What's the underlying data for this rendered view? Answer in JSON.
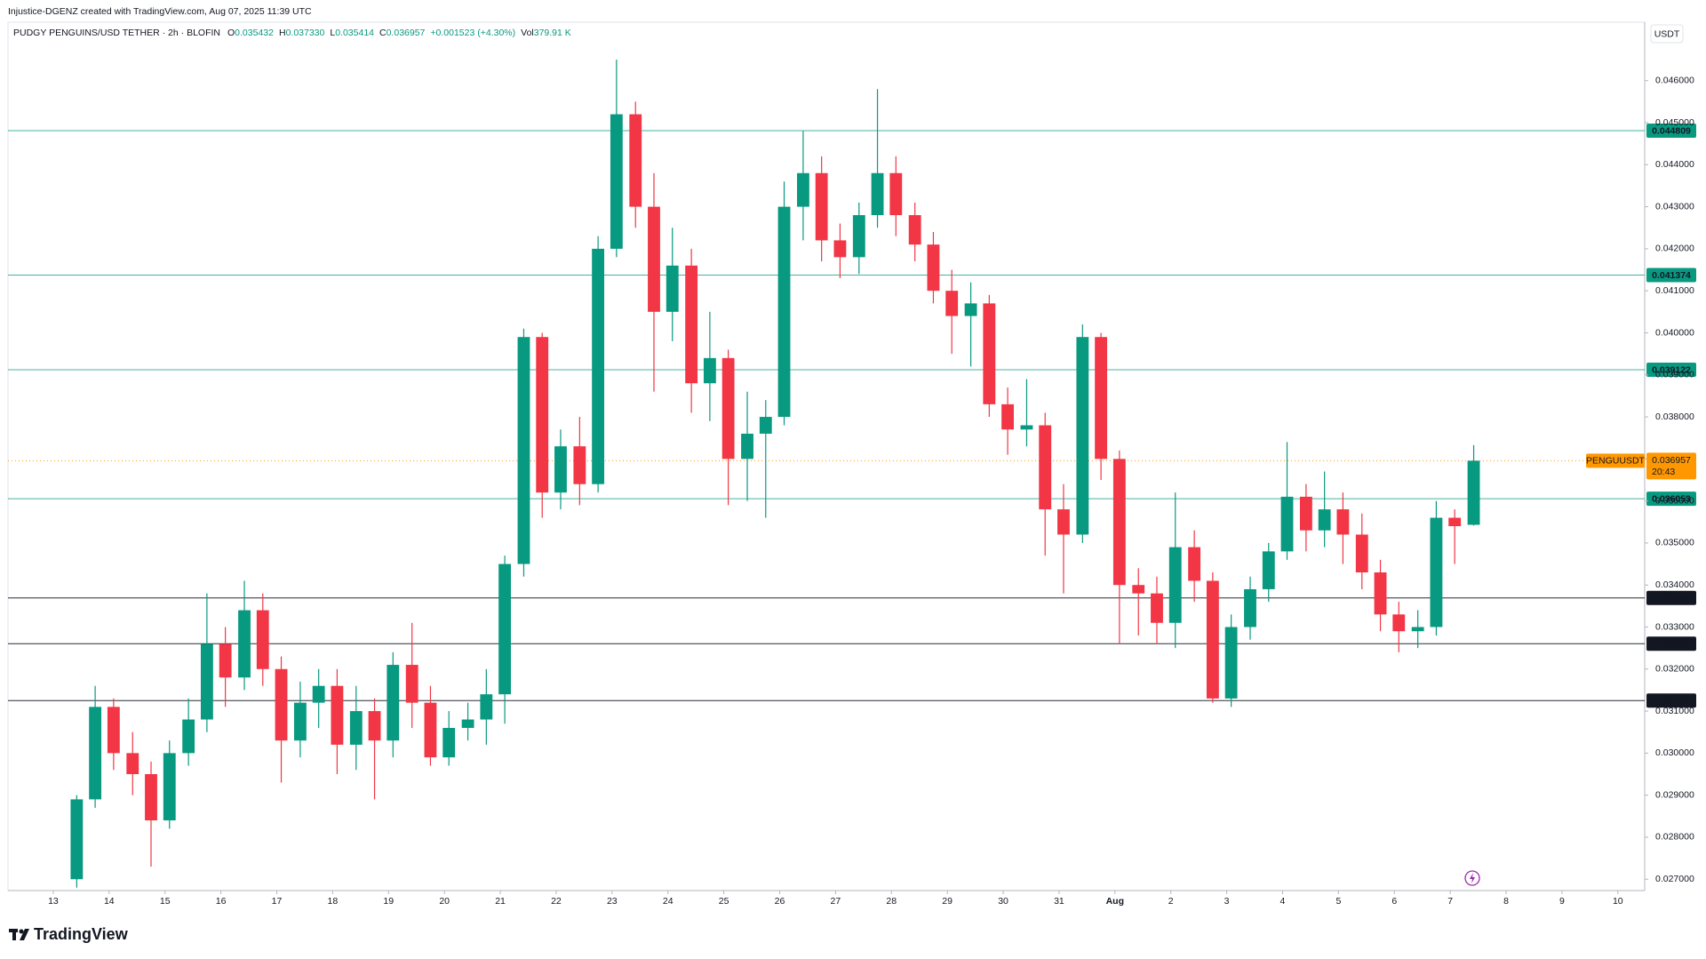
{
  "header": {
    "credit": "Injustice-DGENZ created with TradingView.com, Aug 07, 2025 11:39 UTC"
  },
  "footer": {
    "brand": "TradingView"
  },
  "chart_data": {
    "type": "candlestick",
    "symbol": "PUDGY PENGUINS/USD TETHER · 2h · BLOFIN",
    "legend": {
      "open_prefix": "O",
      "open": "0.035432",
      "high_prefix": "H",
      "high": "0.037330",
      "low_prefix": "L",
      "low": "0.035414",
      "close_prefix": "C",
      "close": "0.036957",
      "change": "+0.001523 (+4.30%)",
      "volume_prefix": "Vol",
      "volume": "379.91 K"
    },
    "currency": "USDT",
    "up_color": "#089981",
    "down_color": "#f23645",
    "xlim": [
      12.19,
      41.48
    ],
    "ylim": [
      0.02673,
      0.04739
    ],
    "xticks": [
      13,
      14,
      15,
      16,
      17,
      18,
      19,
      20,
      21,
      22,
      23,
      24,
      25,
      26,
      27,
      28,
      29,
      30,
      31,
      {
        "value": 32,
        "label": "Aug"
      },
      {
        "value": 33,
        "label": "2"
      },
      {
        "value": 34,
        "label": "3"
      },
      {
        "value": 35,
        "label": "4"
      },
      {
        "value": 36,
        "label": "5"
      },
      {
        "value": 37,
        "label": "6"
      },
      {
        "value": 38,
        "label": "7"
      },
      {
        "value": 39,
        "label": "8"
      },
      {
        "value": 40,
        "label": "9"
      },
      {
        "value": 41,
        "label": "10"
      }
    ],
    "yticks": [
      {
        "value": 0.027,
        "label": "0.027000"
      },
      {
        "value": 0.028,
        "label": "0.028000"
      },
      {
        "value": 0.029,
        "label": "0.029000"
      },
      {
        "value": 0.03,
        "label": "0.030000"
      },
      {
        "value": 0.031,
        "label": "0.031000"
      },
      {
        "value": 0.032,
        "label": "0.032000"
      },
      {
        "value": 0.033,
        "label": "0.033000"
      },
      {
        "value": 0.034,
        "label": "0.034000"
      },
      {
        "value": 0.035,
        "label": "0.035000"
      },
      {
        "value": 0.036,
        "label": "0.036000"
      },
      {
        "value": 0.037,
        "label": "0.037000"
      },
      {
        "value": 0.038,
        "label": "0.038000"
      },
      {
        "value": 0.039,
        "label": "0.039000"
      },
      {
        "value": 0.04,
        "label": "0.040000"
      },
      {
        "value": 0.041,
        "label": "0.041000"
      },
      {
        "value": 0.042,
        "label": "0.042000"
      },
      {
        "value": 0.043,
        "label": "0.043000"
      },
      {
        "value": 0.044,
        "label": "0.044000"
      },
      {
        "value": 0.045,
        "label": "0.045000"
      },
      {
        "value": 0.046,
        "label": "0.046000"
      }
    ],
    "levels": [
      0.044809,
      0.041374,
      0.039122,
      0.036053,
      0.033692,
      0.032604,
      0.031249
    ],
    "level_colors": [
      "#089981",
      "#089981",
      "#089981",
      "#089981",
      "#131722",
      "#131722",
      "#131722"
    ],
    "last_price": {
      "name": "PENGUUSDT",
      "value": 0.036957,
      "countdown": "20:43",
      "color": "#ff9800"
    },
    "x": [
      13.42,
      13.75,
      14.08,
      14.42,
      14.75,
      15.08,
      15.42,
      15.75,
      16.08,
      16.42,
      16.75,
      17.08,
      17.42,
      17.75,
      18.08,
      18.42,
      18.75,
      19.08,
      19.42,
      19.75,
      20.08,
      20.42,
      20.75,
      21.08,
      21.42,
      21.75,
      22.08,
      22.42,
      22.75,
      23.08,
      23.42,
      23.75,
      24.08,
      24.42,
      24.75,
      25.08,
      25.42,
      25.75,
      26.08,
      26.42,
      26.75,
      27.08,
      27.42,
      27.75,
      28.08,
      28.42,
      28.75,
      29.08,
      29.42,
      29.75,
      30.08,
      30.42,
      30.75,
      31.08,
      31.42,
      31.75,
      32.08,
      32.42,
      32.75,
      33.08,
      33.42,
      33.75,
      34.08,
      34.42,
      34.75,
      35.08,
      35.42,
      35.75,
      36.08,
      36.42,
      36.75,
      37.08,
      37.42,
      37.75,
      38.08,
      38.42
    ],
    "open": [
      0.027,
      0.0289,
      0.0311,
      0.03,
      0.0295,
      0.0284,
      0.03,
      0.0308,
      0.0326,
      0.0318,
      0.0334,
      0.032,
      0.0303,
      0.0312,
      0.0316,
      0.0302,
      0.031,
      0.0303,
      0.0321,
      0.0312,
      0.0299,
      0.0306,
      0.0308,
      0.0314,
      0.0345,
      0.0399,
      0.0362,
      0.0373,
      0.0364,
      0.042,
      0.0452,
      0.043,
      0.0405,
      0.0416,
      0.0388,
      0.0394,
      0.037,
      0.0376,
      0.038,
      0.043,
      0.0438,
      0.0422,
      0.0418,
      0.0428,
      0.0438,
      0.0428,
      0.0421,
      0.041,
      0.0404,
      0.0407,
      0.0383,
      0.0377,
      0.0378,
      0.0358,
      0.0352,
      0.0399,
      0.037,
      0.034,
      0.0338,
      0.0331,
      0.0349,
      0.0341,
      0.0313,
      0.033,
      0.0339,
      0.0348,
      0.0361,
      0.0353,
      0.0358,
      0.0352,
      0.0343,
      0.0333,
      0.0329,
      0.033,
      0.0356,
      0.035432
    ],
    "high": [
      0.029,
      0.0316,
      0.0313,
      0.0305,
      0.0298,
      0.0303,
      0.0313,
      0.0338,
      0.033,
      0.0341,
      0.0338,
      0.0323,
      0.0317,
      0.032,
      0.032,
      0.0316,
      0.0313,
      0.0324,
      0.0331,
      0.0316,
      0.031,
      0.0312,
      0.032,
      0.0347,
      0.0401,
      0.04,
      0.0377,
      0.038,
      0.0423,
      0.0465,
      0.0455,
      0.0438,
      0.0425,
      0.042,
      0.0405,
      0.0396,
      0.0386,
      0.0384,
      0.0436,
      0.0448,
      0.0442,
      0.0426,
      0.0431,
      0.0458,
      0.0442,
      0.0431,
      0.0424,
      0.0415,
      0.0412,
      0.0409,
      0.0387,
      0.0389,
      0.0381,
      0.0364,
      0.0402,
      0.04,
      0.0372,
      0.0344,
      0.0342,
      0.0362,
      0.0353,
      0.0343,
      0.0333,
      0.0342,
      0.035,
      0.0374,
      0.0364,
      0.0367,
      0.0362,
      0.0357,
      0.0346,
      0.0336,
      0.0334,
      0.036,
      0.0358,
      0.03733
    ],
    "low": [
      0.0268,
      0.0287,
      0.0296,
      0.029,
      0.0273,
      0.0282,
      0.0297,
      0.0305,
      0.0311,
      0.0315,
      0.0316,
      0.0293,
      0.0299,
      0.0306,
      0.0295,
      0.0296,
      0.0289,
      0.0299,
      0.0306,
      0.0297,
      0.0297,
      0.0303,
      0.0302,
      0.0307,
      0.0342,
      0.0356,
      0.0358,
      0.0359,
      0.0362,
      0.0418,
      0.0425,
      0.0386,
      0.0398,
      0.0381,
      0.0379,
      0.0359,
      0.036,
      0.0356,
      0.0378,
      0.0422,
      0.0417,
      0.0413,
      0.0414,
      0.0425,
      0.0423,
      0.0417,
      0.0407,
      0.0395,
      0.0392,
      0.038,
      0.0371,
      0.0373,
      0.0347,
      0.0338,
      0.035,
      0.0365,
      0.0326,
      0.0328,
      0.0326,
      0.0325,
      0.0336,
      0.0312,
      0.0311,
      0.0327,
      0.0336,
      0.0346,
      0.0348,
      0.0349,
      0.0345,
      0.0339,
      0.0329,
      0.0324,
      0.0325,
      0.0328,
      0.0345,
      0.035414
    ],
    "close": [
      0.0289,
      0.0311,
      0.03,
      0.0295,
      0.0284,
      0.03,
      0.0308,
      0.0326,
      0.0318,
      0.0334,
      0.032,
      0.0303,
      0.0312,
      0.0316,
      0.0302,
      0.031,
      0.0303,
      0.0321,
      0.0312,
      0.0299,
      0.0306,
      0.0308,
      0.0314,
      0.0345,
      0.0399,
      0.0362,
      0.0373,
      0.0364,
      0.042,
      0.0452,
      0.043,
      0.0405,
      0.0416,
      0.0388,
      0.0394,
      0.037,
      0.0376,
      0.038,
      0.043,
      0.0438,
      0.0422,
      0.0418,
      0.0428,
      0.0438,
      0.0428,
      0.0421,
      0.041,
      0.0404,
      0.0407,
      0.0383,
      0.0377,
      0.0378,
      0.0358,
      0.0352,
      0.0399,
      0.037,
      0.034,
      0.0338,
      0.0331,
      0.0349,
      0.0341,
      0.0313,
      0.033,
      0.0339,
      0.0348,
      0.0361,
      0.0353,
      0.0358,
      0.0352,
      0.0343,
      0.0333,
      0.0329,
      0.033,
      0.0356,
      0.0354,
      0.036957
    ]
  }
}
